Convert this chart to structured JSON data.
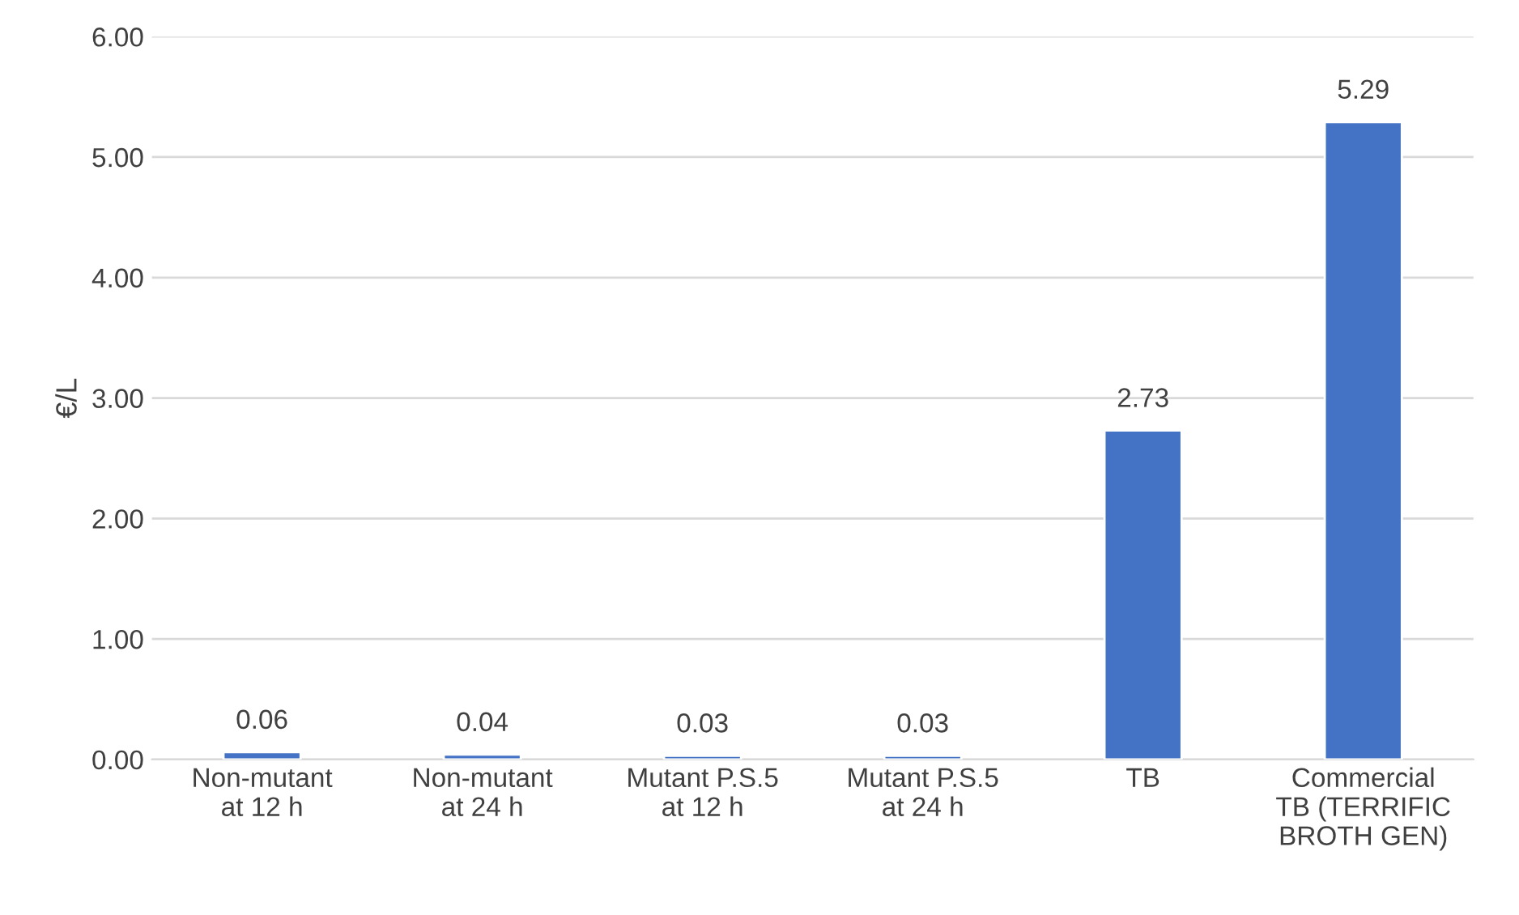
{
  "chart_data": {
    "type": "bar",
    "ylabel": "€/L",
    "categories": [
      "Non-mutant\nat 12 h",
      "Non-mutant\nat 24 h",
      "Mutant P.S.5\nat 12 h",
      "Mutant P.S.5\nat 24 h",
      "TB",
      "Commercial\nTB (TERRIFIC\nBROTH GEN)"
    ],
    "values": [
      0.06,
      0.04,
      0.03,
      0.03,
      2.73,
      5.29
    ],
    "color": "#4472c4",
    "value_labels": [
      "0.06",
      "0.04",
      "0.03",
      "0.03",
      "2.73",
      "5.29"
    ],
    "ylim": [
      0,
      6
    ],
    "yticks": [
      {
        "value": 0,
        "label": "0.00"
      },
      {
        "value": 1,
        "label": "1.00"
      },
      {
        "value": 2,
        "label": "2.00"
      },
      {
        "value": 3,
        "label": "3.00"
      },
      {
        "value": 4,
        "label": "4.00"
      },
      {
        "value": 5,
        "label": "5.00"
      },
      {
        "value": 6,
        "label": "6.00"
      }
    ],
    "grid": "y",
    "legend": false
  }
}
